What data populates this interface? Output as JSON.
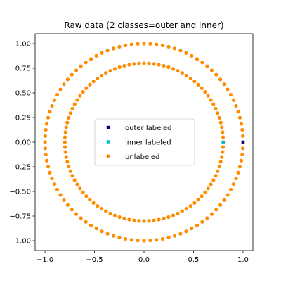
{
  "chart_data": {
    "type": "scatter",
    "title": "Raw data (2 classes=outer and inner)",
    "xlabel": "",
    "ylabel": "",
    "xlim": [
      -1.1,
      1.1
    ],
    "ylim": [
      -1.1,
      1.1
    ],
    "xticks": [
      -1.0,
      -0.5,
      0.0,
      0.5,
      1.0
    ],
    "xtick_labels": [
      "−1.0",
      "−0.5",
      "0.0",
      "0.5",
      "1.0"
    ],
    "yticks": [
      1.0,
      0.75,
      0.5,
      0.25,
      0.0,
      -0.25,
      -0.5,
      -0.75,
      -1.0
    ],
    "ytick_labels": [
      "1.00",
      "0.75",
      "0.50",
      "0.25",
      "0.00",
      "−0.25",
      "−0.50",
      "−0.75",
      "−1.00"
    ],
    "grid": false,
    "legend_position": "center",
    "series": [
      {
        "name": "outer labeled",
        "color": "#00008b",
        "marker": "square",
        "points": [
          [
            1.0,
            0.0
          ]
        ]
      },
      {
        "name": "inner labeled",
        "color": "#00bcd4",
        "marker": "square",
        "points": [
          [
            0.8,
            0.0
          ]
        ]
      },
      {
        "name": "unlabeled",
        "color": "#ff8c00",
        "marker": "circle",
        "circles": [
          {
            "radius": 1.0,
            "count": 100
          },
          {
            "radius": 0.8,
            "count": 100
          }
        ]
      }
    ]
  }
}
